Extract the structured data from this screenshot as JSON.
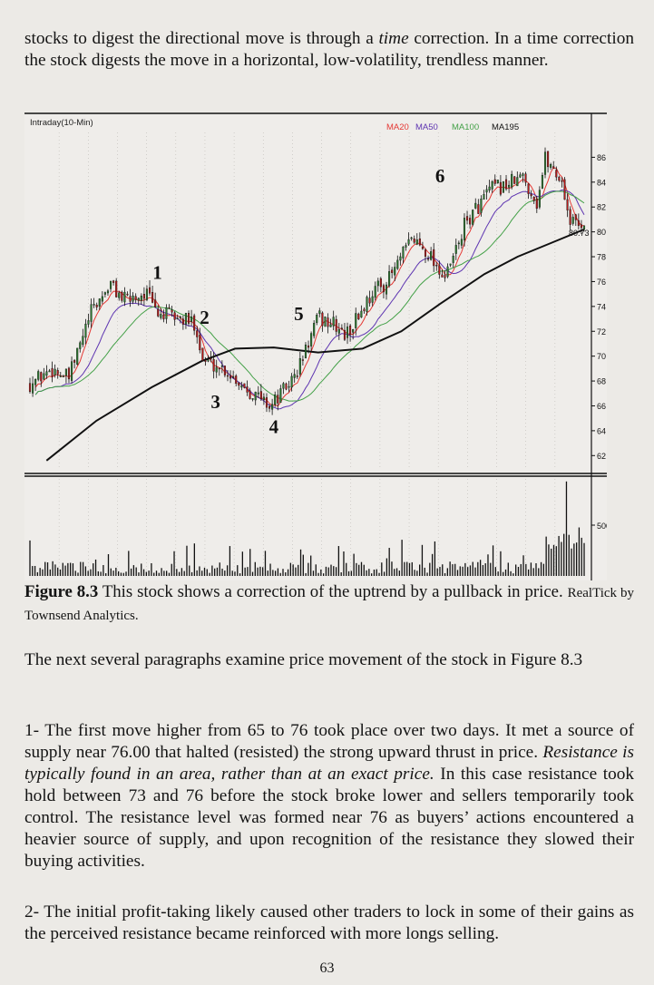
{
  "top_paragraph": {
    "part1": "stocks to digest the directional move is through a ",
    "time_word": "time",
    "part2": " correction. In a time correction the stock digests the move in a horizontal, low-volatility, trendless manner."
  },
  "chart_data": [
    {
      "type": "candlestick",
      "panel_label": "Intraday(10-Min)",
      "legend": [
        {
          "name": "MA20",
          "color": "#e53935"
        },
        {
          "name": "MA50",
          "color": "#5e35b1"
        },
        {
          "name": "MA100",
          "color": "#43a047"
        },
        {
          "name": "MA195",
          "color": "#111111"
        }
      ],
      "ylim": [
        61,
        88
      ],
      "y_ticks": [
        62,
        64,
        66,
        68,
        70,
        72,
        74,
        76,
        78,
        "80",
        82,
        84,
        86
      ],
      "last_price_label": "80.73",
      "grid": true,
      "wave_labels": [
        {
          "text": "1",
          "x": 0.23,
          "y": 76.2
        },
        {
          "text": "2",
          "x": 0.315,
          "y": 72.6
        },
        {
          "text": "3",
          "x": 0.335,
          "y": 65.8
        },
        {
          "text": "4",
          "x": 0.44,
          "y": 63.8
        },
        {
          "text": "5",
          "x": 0.485,
          "y": 72.9
        },
        {
          "text": "6",
          "x": 0.74,
          "y": 84.0
        }
      ],
      "price_path": [
        [
          0.0,
          67.8
        ],
        [
          0.04,
          69.0
        ],
        [
          0.07,
          68.2
        ],
        [
          0.11,
          73.5
        ],
        [
          0.145,
          75.8
        ],
        [
          0.17,
          74.5
        ],
        [
          0.21,
          75.1
        ],
        [
          0.23,
          73.4
        ],
        [
          0.25,
          73.3
        ],
        [
          0.3,
          72.6
        ],
        [
          0.31,
          69.7
        ],
        [
          0.35,
          69.0
        ],
        [
          0.4,
          67.1
        ],
        [
          0.435,
          66.0
        ],
        [
          0.48,
          68.5
        ],
        [
          0.52,
          73.1
        ],
        [
          0.55,
          72.5
        ],
        [
          0.57,
          71.6
        ],
        [
          0.62,
          75.3
        ],
        [
          0.645,
          76.0
        ],
        [
          0.69,
          79.5
        ],
        [
          0.72,
          78.3
        ],
        [
          0.75,
          76.2
        ],
        [
          0.785,
          80.6
        ],
        [
          0.83,
          83.4
        ],
        [
          0.855,
          83.7
        ],
        [
          0.89,
          84.4
        ],
        [
          0.915,
          82.3
        ],
        [
          0.93,
          86.0
        ],
        [
          0.96,
          84.0
        ],
        [
          0.975,
          80.8
        ],
        [
          1.0,
          80.7
        ]
      ],
      "ma195_path": [
        [
          0.03,
          61.6
        ],
        [
          0.12,
          64.8
        ],
        [
          0.22,
          67.5
        ],
        [
          0.31,
          69.6
        ],
        [
          0.37,
          70.6
        ],
        [
          0.44,
          70.7
        ],
        [
          0.52,
          70.3
        ],
        [
          0.6,
          70.6
        ],
        [
          0.67,
          72.0
        ],
        [
          0.74,
          74.2
        ],
        [
          0.82,
          76.6
        ],
        [
          0.88,
          78.0
        ],
        [
          0.94,
          79.1
        ],
        [
          1.0,
          80.2
        ]
      ]
    },
    {
      "type": "bar",
      "panel": "volume",
      "y_tick_label": "500000",
      "bars": 220,
      "max_volume": 760000
    }
  ],
  "caption": {
    "label": "Figure 8.3",
    "text": " This stock shows a correction of the uptrend by a pullback in price. ",
    "credit": "RealTick by Townsend Analytics."
  },
  "paragraph_intro": "The next several paragraphs examine price movement of the stock in Figure 8.3",
  "paragraph_1": {
    "part1": "1- The first move higher from 65 to 76 took place over two days. It met a source of supply near 76.00 that halted (resisted) the strong upward thrust in price. ",
    "italic": "Resistance is typically found in an area, rather than at an exact price.",
    "part2": " In this case resistance took hold between 73 and 76 before the stock broke lower and sellers temporarily took control. The resistance level was formed near 76 as buyers’ actions encountered a heavier source of supply, and upon recognition of the resistance they slowed their buying activities."
  },
  "paragraph_2": "2- The initial profit-taking likely caused other traders to lock in some of their gains as the perceived resistance became reinforced with more longs selling.",
  "page_number": "63"
}
